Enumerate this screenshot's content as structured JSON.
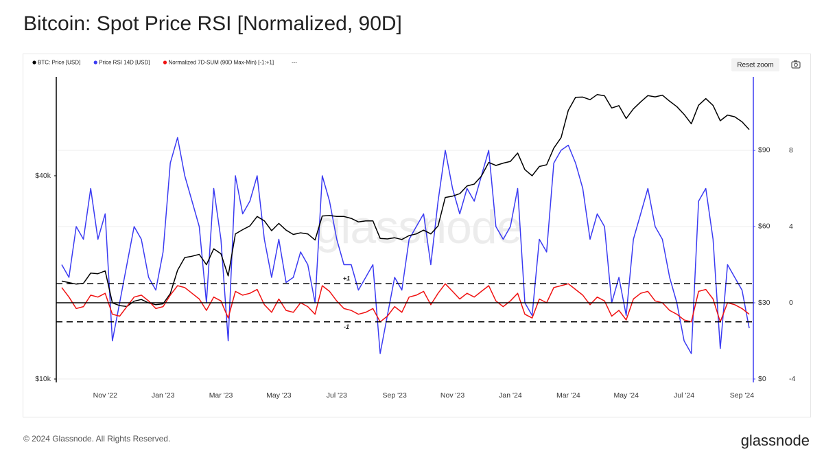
{
  "chart_data": {
    "type": "line",
    "title": "Bitcoin: Spot Price RSI [Normalized, 90D]",
    "watermark": "glassnode",
    "reset_zoom": "Reset zoom",
    "legend_extra": "---",
    "x": [
      null,
      null,
      null,
      null,
      null,
      null,
      "Nov '22",
      null,
      null,
      null,
      null,
      null,
      null,
      null,
      "Jan '23",
      null,
      null,
      null,
      null,
      null,
      null,
      null,
      "Mar '23",
      null,
      null,
      null,
      null,
      null,
      null,
      null,
      "May '23",
      null,
      null,
      null,
      null,
      null,
      null,
      null,
      "Jul '23",
      null,
      null,
      null,
      null,
      null,
      null,
      null,
      "Sep '23",
      null,
      null,
      null,
      null,
      null,
      null,
      null,
      "Nov '23",
      null,
      null,
      null,
      null,
      null,
      null,
      null,
      "Jan '24",
      null,
      null,
      null,
      null,
      null,
      null,
      null,
      "Mar '24",
      null,
      null,
      null,
      null,
      null,
      null,
      null,
      "May '24",
      null,
      null,
      null,
      null,
      null,
      null,
      null,
      "Jul '24",
      null,
      null,
      null,
      null,
      null,
      null,
      null,
      "Sep '24",
      null
    ],
    "log_y": true,
    "ylim": [
      9770,
      78500
    ],
    "yticks": [
      {
        "value": 10000,
        "label": "$10k"
      },
      {
        "value": 40000,
        "label": "$40k"
      }
    ],
    "y2lim": [
      -1.35,
      118.9
    ],
    "y2ticks": [
      {
        "value": 0,
        "label": "$0"
      },
      {
        "value": 30,
        "label": "$30"
      },
      {
        "value": 60,
        "label": "$60"
      },
      {
        "value": 90,
        "label": "$90"
      }
    ],
    "y3lim": [
      -4.18,
      11.86
    ],
    "y3ticks": [
      -4,
      0,
      4,
      8
    ],
    "grid": true,
    "reference_lines": [
      {
        "value": 1,
        "label": "+1",
        "style": "dashed"
      },
      {
        "value": 0,
        "style": "solid"
      },
      {
        "value": -1,
        "label": "-1",
        "style": "dashed"
      }
    ],
    "series": [
      {
        "name": "BTC: Price [USD]",
        "color": "#000000",
        "axis": "y",
        "values": [
          19500,
          19300,
          19100,
          19200,
          20600,
          20500,
          20900,
          16800,
          16500,
          16400,
          17000,
          17200,
          16800,
          16600,
          16700,
          17900,
          21000,
          22900,
          23100,
          23400,
          21800,
          24300,
          23500,
          20200,
          26900,
          27700,
          28400,
          30300,
          29400,
          27500,
          28900,
          27600,
          26800,
          27100,
          26900,
          25800,
          30400,
          30500,
          30300,
          30300,
          29900,
          29200,
          29400,
          29400,
          26100,
          26000,
          26200,
          25900,
          26600,
          26900,
          27600,
          26900,
          28400,
          34500,
          34800,
          35400,
          37300,
          37800,
          39900,
          43800,
          42900,
          43600,
          44100,
          46700,
          41700,
          40000,
          42600,
          43100,
          48300,
          51900,
          62500,
          68300,
          68400,
          67200,
          69600,
          69000,
          63500,
          64500,
          59100,
          63100,
          66200,
          69100,
          68500,
          69300,
          66500,
          64100,
          60800,
          57000,
          64700,
          67700,
          64600,
          58200,
          60500,
          59800,
          57800,
          54800
        ]
      },
      {
        "name": "Price RSI 14D [USD]",
        "color": "#3b3bf2",
        "axis": "y2",
        "values": [
          45,
          40,
          60,
          55,
          75,
          55,
          65,
          15,
          30,
          45,
          60,
          55,
          40,
          35,
          50,
          85,
          95,
          80,
          70,
          60,
          30,
          75,
          55,
          15,
          80,
          65,
          70,
          80,
          55,
          40,
          55,
          38,
          40,
          50,
          45,
          30,
          80,
          70,
          55,
          45,
          45,
          35,
          40,
          45,
          10,
          25,
          40,
          35,
          55,
          60,
          65,
          45,
          70,
          90,
          75,
          65,
          75,
          70,
          80,
          90,
          60,
          55,
          60,
          75,
          30,
          25,
          55,
          50,
          85,
          90,
          92,
          85,
          75,
          55,
          65,
          60,
          30,
          40,
          25,
          55,
          65,
          75,
          60,
          55,
          40,
          30,
          15,
          10,
          70,
          75,
          55,
          12,
          45,
          40,
          35,
          20
        ]
      },
      {
        "name": "Normalized 7D-SUM (90D Max-Min) [-1:+1]",
        "color": "#f01212",
        "axis": "y3",
        "values": [
          0.8,
          0.3,
          -0.3,
          -0.2,
          0.4,
          0.3,
          0.5,
          -0.6,
          -0.7,
          -0.2,
          0.3,
          0.4,
          0.1,
          -0.3,
          -0.2,
          0.4,
          0.9,
          0.8,
          0.5,
          0.2,
          -0.4,
          0.3,
          0.1,
          -0.8,
          0.6,
          0.4,
          0.5,
          0.7,
          -0.1,
          -0.5,
          0.2,
          -0.4,
          -0.5,
          0.0,
          -0.2,
          -0.6,
          0.9,
          0.6,
          0.1,
          -0.3,
          -0.4,
          -0.6,
          -0.5,
          -0.3,
          -1.0,
          -0.7,
          -0.2,
          -0.5,
          0.3,
          0.4,
          0.6,
          -0.1,
          0.5,
          1.0,
          0.6,
          0.2,
          0.5,
          0.3,
          0.6,
          0.9,
          0.1,
          -0.2,
          0.1,
          0.5,
          -0.6,
          -0.8,
          0.2,
          0.0,
          0.8,
          0.9,
          1.0,
          0.7,
          0.4,
          -0.1,
          0.3,
          0.1,
          -0.7,
          -0.4,
          -0.9,
          0.2,
          0.5,
          0.6,
          0.1,
          0.0,
          -0.4,
          -0.6,
          -0.9,
          -1.0,
          0.6,
          0.7,
          0.2,
          -1.0,
          0.0,
          -0.1,
          -0.3,
          -0.6
        ]
      }
    ]
  },
  "footer": {
    "copyright": "© 2024 Glassnode. All Rights Reserved.",
    "logo": "glassnode"
  }
}
